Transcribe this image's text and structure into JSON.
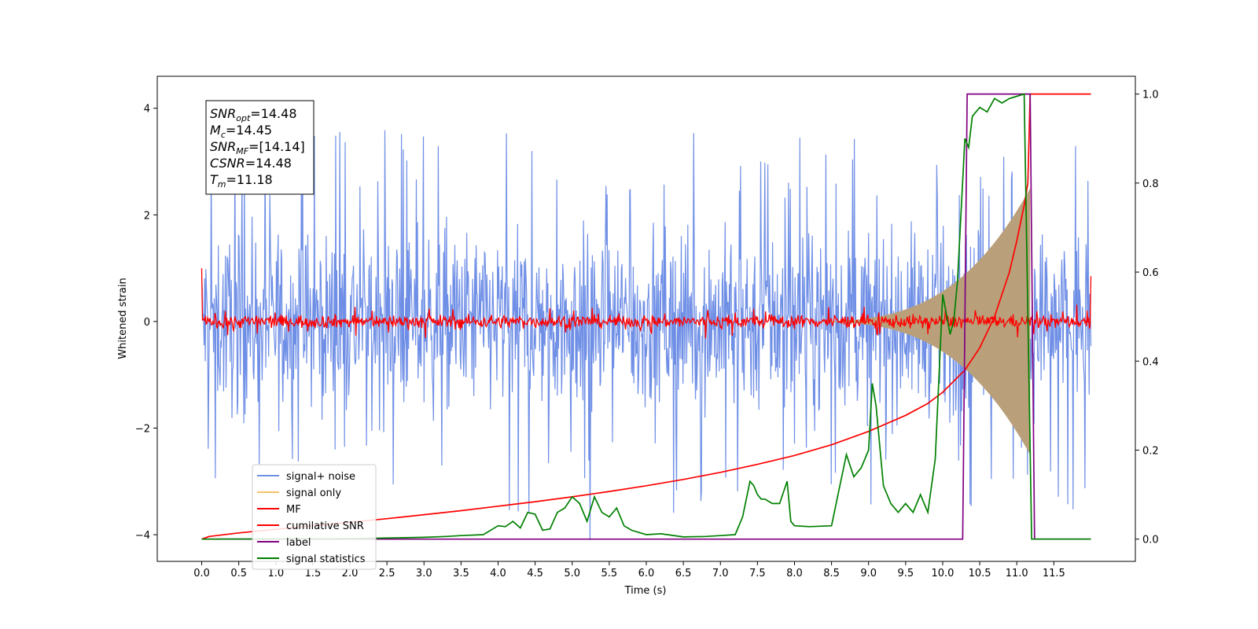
{
  "chart_data": {
    "type": "line",
    "xlabel": "Time (s)",
    "ylabel": "Whitened strain",
    "xlim": [
      -0.6,
      12.6
    ],
    "ylim": [
      -4.5,
      4.6
    ],
    "y2lim": [
      -0.05,
      1.04
    ],
    "xticks": [
      "0.0",
      "0.5",
      "1.0",
      "1.5",
      "2.0",
      "2.5",
      "3.0",
      "3.5",
      "4.0",
      "4.5",
      "5.0",
      "5.5",
      "6.0",
      "6.5",
      "7.0",
      "7.5",
      "8.0",
      "8.5",
      "9.0",
      "9.5",
      "10.0",
      "10.5",
      "11.0",
      "11.5"
    ],
    "yticks": [
      "−4",
      "−2",
      "0",
      "2",
      "4"
    ],
    "y2ticks": [
      "0.0",
      "0.2",
      "0.4",
      "0.6",
      "0.8",
      "1.0"
    ],
    "legend_position": "lower-left",
    "legend": [
      "signal+ noise",
      "signal only",
      "MF",
      "cumilative SNR",
      "label",
      "signal statistics"
    ],
    "colors": {
      "signal_noise": "#6f8fe6",
      "signal_only": "#f5c26b",
      "signal_only_overlap": "#b9a07a",
      "mf": "#ff0000",
      "cumulative_snr": "#ff0000",
      "label": "#800080",
      "signal_statistics": "#008000"
    },
    "annotation": {
      "lines": [
        {
          "sym": "SNR",
          "sub": "opt",
          "value": "=14.48"
        },
        {
          "sym": "M",
          "sub": "c",
          "value": "=14.45"
        },
        {
          "sym": "SNR",
          "sub": "MF",
          "value": "=[14.14]"
        },
        {
          "sym": "CSNR",
          "sub": "",
          "value": "=14.48"
        },
        {
          "sym": "T",
          "sub": "m",
          "value": "=11.18"
        }
      ]
    },
    "series": [
      {
        "name": "signal+ noise",
        "axis": "left",
        "style": "noise",
        "x_range": [
          0.0,
          12.0
        ],
        "band_sigma": 0.9,
        "peak_max": 4.15,
        "peak_min": -4.1
      },
      {
        "name": "signal only",
        "axis": "left",
        "style": "chirp",
        "x_range": [
          8.0,
          11.18
        ],
        "peak_amplitude": 2.5
      },
      {
        "name": "MF",
        "axis": "left",
        "style": "mf",
        "x_range": [
          0.0,
          12.0
        ],
        "band": 0.12,
        "edge_start": 1.0,
        "edge_end": 0.85
      },
      {
        "name": "cumilative SNR",
        "axis": "right",
        "x": [
          0.0,
          0.1,
          0.5,
          1.0,
          1.5,
          2.0,
          2.5,
          3.0,
          3.5,
          4.0,
          4.5,
          5.0,
          5.5,
          6.0,
          6.5,
          7.0,
          7.5,
          8.0,
          8.5,
          9.0,
          9.5,
          9.8,
          10.0,
          10.3,
          10.5,
          10.7,
          10.9,
          11.0,
          11.1,
          11.15,
          11.18,
          11.2,
          12.0
        ],
        "y": [
          0.0,
          0.006,
          0.014,
          0.022,
          0.03,
          0.038,
          0.046,
          0.055,
          0.064,
          0.074,
          0.084,
          0.095,
          0.107,
          0.12,
          0.134,
          0.15,
          0.168,
          0.188,
          0.212,
          0.242,
          0.278,
          0.305,
          0.33,
          0.38,
          0.43,
          0.5,
          0.6,
          0.67,
          0.75,
          0.8,
          1.0,
          1.0,
          1.0
        ]
      },
      {
        "name": "label",
        "axis": "right",
        "x": [
          0.0,
          10.27,
          10.33,
          11.18,
          11.24,
          12.0
        ],
        "y": [
          0.0,
          0.0,
          1.0,
          1.0,
          0.0,
          0.0
        ]
      },
      {
        "name": "signal statistics",
        "axis": "right",
        "x": [
          0.0,
          2.0,
          3.0,
          3.3,
          3.5,
          3.8,
          4.0,
          4.1,
          4.2,
          4.3,
          4.4,
          4.5,
          4.6,
          4.7,
          4.8,
          4.9,
          5.0,
          5.1,
          5.2,
          5.3,
          5.4,
          5.5,
          5.6,
          5.7,
          5.8,
          5.9,
          6.0,
          6.2,
          6.5,
          6.8,
          7.0,
          7.2,
          7.3,
          7.4,
          7.45,
          7.5,
          7.55,
          7.6,
          7.7,
          7.8,
          7.9,
          7.95,
          8.0,
          8.2,
          8.5,
          8.6,
          8.7,
          8.8,
          8.9,
          9.0,
          9.05,
          9.1,
          9.2,
          9.3,
          9.4,
          9.5,
          9.6,
          9.7,
          9.8,
          9.9,
          10.0,
          10.1,
          10.15,
          10.2,
          10.3,
          10.35,
          10.4,
          10.5,
          10.6,
          10.7,
          10.8,
          10.9,
          11.0,
          11.1,
          11.2,
          11.25,
          11.3,
          12.0
        ],
        "y": [
          0.0,
          0.001,
          0.004,
          0.006,
          0.008,
          0.01,
          0.03,
          0.028,
          0.04,
          0.025,
          0.06,
          0.056,
          0.02,
          0.023,
          0.06,
          0.07,
          0.095,
          0.08,
          0.04,
          0.095,
          0.06,
          0.05,
          0.07,
          0.03,
          0.02,
          0.015,
          0.01,
          0.012,
          0.005,
          0.006,
          0.008,
          0.01,
          0.05,
          0.13,
          0.12,
          0.1,
          0.09,
          0.09,
          0.08,
          0.08,
          0.13,
          0.04,
          0.03,
          0.028,
          0.03,
          0.11,
          0.19,
          0.14,
          0.16,
          0.2,
          0.35,
          0.3,
          0.12,
          0.08,
          0.06,
          0.08,
          0.06,
          0.1,
          0.06,
          0.18,
          0.55,
          0.46,
          0.49,
          0.58,
          0.9,
          0.88,
          0.95,
          0.97,
          0.96,
          0.99,
          0.98,
          0.99,
          0.995,
          1.0,
          0.0,
          0.0,
          0.0,
          0.0
        ]
      }
    ]
  }
}
